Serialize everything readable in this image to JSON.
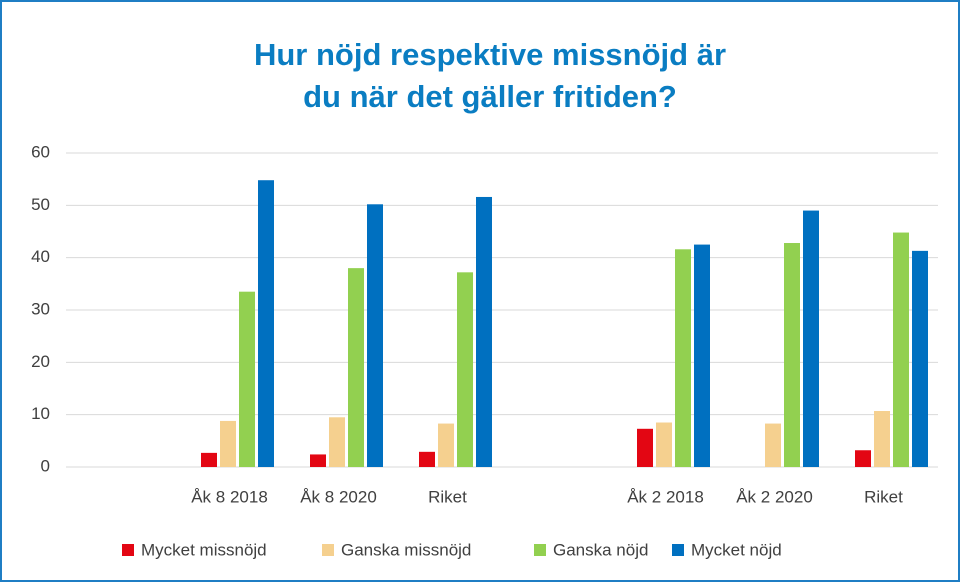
{
  "chart_data": {
    "type": "bar",
    "title": "Hur nöjd respektive missnöjd är du när det gäller fritiden?",
    "categories": [
      null,
      "Åk 8 2018",
      "Åk 8 2020",
      "Riket",
      null,
      "Åk 2 2018",
      "Åk 2 2020",
      "Riket"
    ],
    "series": [
      {
        "name": "Mycket missnöjd",
        "color": "#e30613",
        "values": [
          null,
          2.7,
          2.4,
          2.9,
          null,
          7.3,
          null,
          3.2
        ]
      },
      {
        "name": "Ganska missnöjd",
        "color": "#f5d08f",
        "values": [
          null,
          8.8,
          9.5,
          8.3,
          null,
          8.5,
          8.3,
          10.7
        ]
      },
      {
        "name": "Ganska nöjd",
        "color": "#92d050",
        "values": [
          null,
          33.5,
          38.0,
          37.2,
          null,
          41.6,
          42.8,
          44.8
        ]
      },
      {
        "name": "Mycket nöjd",
        "color": "#0070c0",
        "values": [
          null,
          54.8,
          50.2,
          51.6,
          null,
          42.5,
          49.0,
          41.3
        ]
      }
    ],
    "ylim": [
      0,
      60
    ],
    "yticks": [
      0,
      10,
      20,
      30,
      40,
      50,
      60
    ],
    "grid": true,
    "legend": "bottom"
  }
}
